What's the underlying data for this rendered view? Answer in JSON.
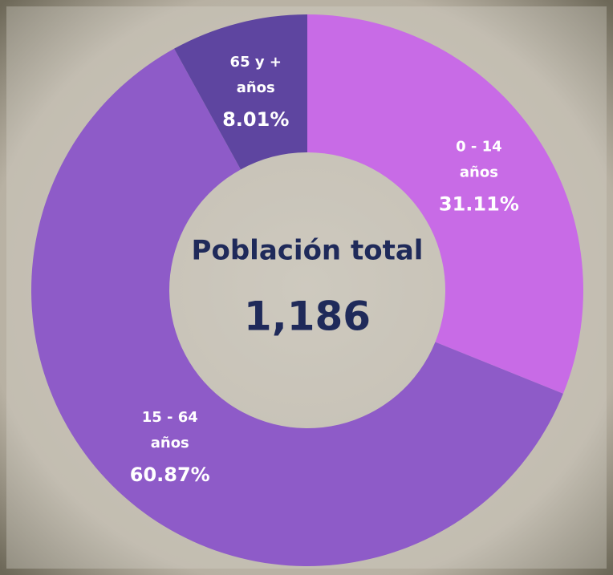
{
  "chart_data": {
    "type": "donut",
    "categories": [
      "0 - 14 años",
      "15 - 64 años",
      "65 y + años"
    ],
    "values": [
      31.11,
      60.87,
      8.01
    ],
    "value_labels": [
      "31.11%",
      "60.87%",
      "8.01%"
    ],
    "colors": [
      "#c86be6",
      "#8e5bc8",
      "#5e45a0"
    ],
    "center_title": "Población total",
    "total": 1186,
    "total_label": "1,186"
  }
}
